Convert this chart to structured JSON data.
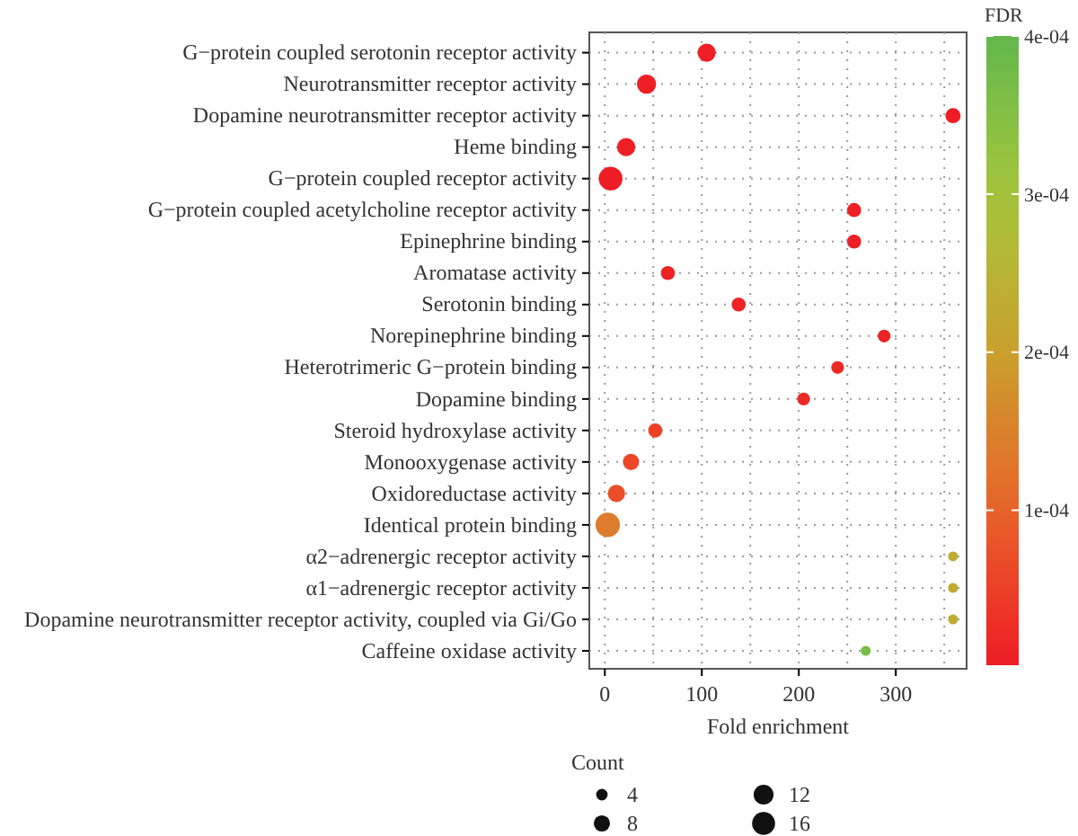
{
  "chart_data": {
    "type": "bubble",
    "orientation": "horizontal",
    "categories": [
      "G−protein coupled serotonin receptor activity",
      "Neurotransmitter receptor activity",
      "Dopamine neurotransmitter receptor activity",
      "Heme binding",
      "G−protein coupled receptor activity",
      "G−protein coupled acetylcholine receptor activity",
      "Epinephrine binding",
      "Aromatase activity",
      "Serotonin binding",
      "Norepinephrine binding",
      "Heterotrimeric G−protein binding",
      "Dopamine binding",
      "Steroid hydroxylase activity",
      "Monooxygenase activity",
      "Oxidoreductase activity",
      "Identical protein binding",
      "α2−adrenergic receptor activity",
      "α1−adrenergic receptor activity",
      "Dopamine neurotransmitter receptor activity, coupled via Gi/Go",
      "Caffeine oxidase activity"
    ],
    "values": [
      105,
      43,
      359,
      22,
      6,
      257,
      257,
      65,
      138,
      288,
      240,
      205,
      52,
      27,
      12,
      3,
      359,
      359,
      359,
      269
    ],
    "sizes": [
      10,
      11,
      7,
      10,
      17,
      6,
      6,
      6,
      6,
      5,
      5,
      5,
      6,
      8,
      9,
      18,
      3,
      3,
      3,
      3
    ],
    "cvalues": [
      8e-06,
      6e-06,
      4e-06,
      8e-06,
      4e-06,
      6e-06,
      6e-06,
      1.2e-05,
      1.2e-05,
      1.2e-05,
      2e-05,
      2e-05,
      5e-05,
      6e-05,
      7e-05,
      0.00014,
      0.00023,
      0.00023,
      0.00023,
      0.00037
    ],
    "xlim": [
      -16,
      373
    ],
    "xticks": [
      0,
      100,
      200,
      300
    ],
    "xlabel": "Fold enrichment",
    "clabel": "FDR",
    "clim": [
      2e-06,
      0.0004
    ],
    "cticks": [
      {
        "value": 0.0001,
        "label": "1e-04"
      },
      {
        "value": 0.0002,
        "label": "2e-04"
      },
      {
        "value": 0.0003,
        "label": "3e-04"
      },
      {
        "value": 0.0004,
        "label": "4e-04"
      }
    ],
    "legend_title": "Count",
    "size_legend": [
      4,
      8,
      12,
      16
    ],
    "grid": true
  }
}
